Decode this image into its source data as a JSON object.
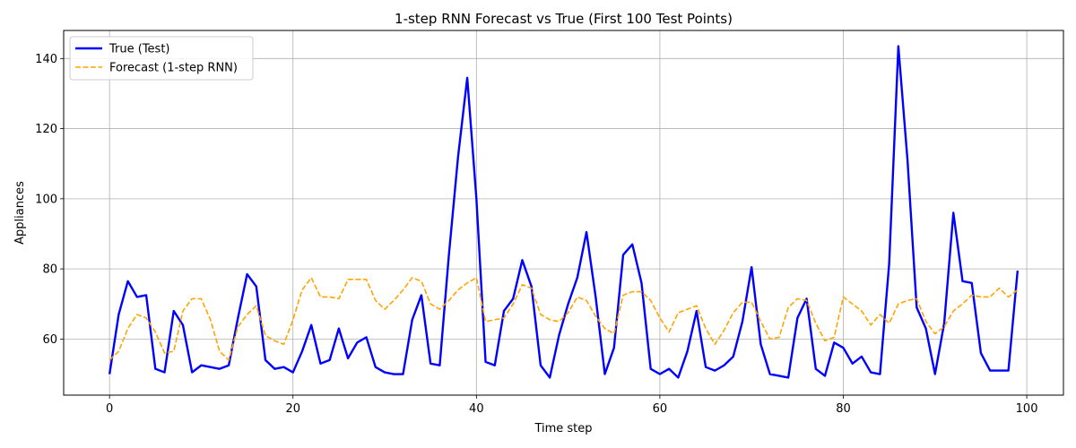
{
  "chart_data": {
    "type": "line",
    "title": "1-step RNN Forecast vs True (First 100 Test Points)",
    "xlabel": "Time step",
    "ylabel": "Appliances",
    "xlim": [
      -5,
      104
    ],
    "ylim": [
      44,
      148
    ],
    "xticks": [
      0,
      20,
      40,
      60,
      80,
      100
    ],
    "yticks": [
      60,
      80,
      100,
      120,
      140
    ],
    "grid": true,
    "legend_position": "top-left",
    "series": [
      {
        "name": "True (Test)",
        "color": "#0000ff",
        "style": "solid",
        "values": [
          50,
          67,
          76.5,
          72,
          72.5,
          51.5,
          50.5,
          68,
          64,
          50.5,
          52.5,
          52,
          51.5,
          52.5,
          66,
          78.5,
          75,
          54,
          51.5,
          52,
          50.5,
          56.5,
          64,
          53,
          54,
          63,
          54.5,
          59,
          60.5,
          52,
          50.5,
          50,
          50,
          65.5,
          72.5,
          53,
          52.5,
          84,
          112,
          134.5,
          100,
          53.5,
          52.5,
          68,
          71.5,
          82.5,
          75,
          52.5,
          49,
          61,
          70,
          77.5,
          90.5,
          72,
          50,
          57.5,
          84,
          87,
          76,
          51.5,
          50,
          51.5,
          49,
          56.5,
          68,
          52,
          51,
          52.5,
          55,
          65,
          80.5,
          58.5,
          50,
          49.5,
          49,
          66,
          71.5,
          51.5,
          49.5,
          59,
          57.5,
          53,
          55,
          50.5,
          50,
          81.5,
          143.5,
          111,
          69,
          63,
          50,
          64.5,
          96,
          76.5,
          76,
          56,
          51,
          51,
          51,
          79.5
        ]
      },
      {
        "name": "Forecast (1-step RNN)",
        "color": "#ffa500",
        "style": "dashed",
        "values": [
          54,
          56.5,
          63,
          67,
          66,
          62,
          56,
          56.5,
          68,
          71.5,
          71.5,
          65.5,
          56.5,
          54,
          63.5,
          67,
          69.5,
          61,
          59.5,
          58.5,
          65.5,
          74,
          77.5,
          72,
          72,
          71.5,
          77,
          77,
          77,
          71,
          68.5,
          71,
          74,
          77.5,
          76.5,
          70,
          68.5,
          71,
          74,
          76,
          77.5,
          65,
          65.5,
          66,
          70,
          75.5,
          74.5,
          67,
          65.5,
          65,
          67.5,
          72,
          71,
          66.5,
          63,
          61.5,
          72.5,
          73.5,
          73.5,
          71,
          66,
          62,
          67.5,
          68.5,
          69.5,
          63,
          58.5,
          62.5,
          67.5,
          70.5,
          70.5,
          65,
          60,
          60.5,
          69,
          71.5,
          71,
          64.5,
          59.5,
          60.5,
          72,
          70,
          68,
          64,
          67,
          64.5,
          70,
          71,
          71.5,
          65,
          61.5,
          63.5,
          68,
          70,
          72.5,
          72,
          72,
          74.5,
          72,
          74
        ]
      }
    ]
  }
}
